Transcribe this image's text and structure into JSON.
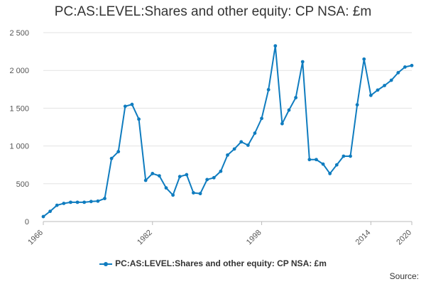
{
  "chart_data": {
    "type": "line",
    "title": "PC:AS:LEVEL:Shares and other equity: CP NSA: £m",
    "xlabel": "",
    "ylabel": "",
    "x_ticks": [
      "1966",
      "1982",
      "1998",
      "2014",
      "2020"
    ],
    "y_ticks": [
      "0",
      "500",
      "1 000",
      "1 500",
      "2 000",
      "2 500"
    ],
    "xlim": [
      1966,
      2020
    ],
    "ylim": [
      0,
      2500
    ],
    "grid": true,
    "legend_position": "bottom",
    "series": [
      {
        "name": "PC:AS:LEVEL:Shares and other equity: CP NSA: £m",
        "color": "#0f7cbf",
        "x": [
          1966,
          1967,
          1968,
          1969,
          1970,
          1971,
          1972,
          1973,
          1974,
          1975,
          1976,
          1977,
          1978,
          1979,
          1980,
          1981,
          1982,
          1983,
          1984,
          1985,
          1986,
          1987,
          1988,
          1989,
          1990,
          1991,
          1992,
          1993,
          1994,
          1995,
          1996,
          1997,
          1998,
          1999,
          2000,
          2001,
          2002,
          2003,
          2004,
          2005,
          2006,
          2007,
          2008,
          2009,
          2010,
          2011,
          2012,
          2013,
          2014,
          2015,
          2016,
          2017,
          2018,
          2019,
          2020
        ],
        "values": [
          65,
          135,
          215,
          240,
          255,
          255,
          255,
          265,
          270,
          305,
          835,
          925,
          1525,
          1550,
          1355,
          545,
          635,
          605,
          445,
          350,
          595,
          620,
          380,
          370,
          555,
          580,
          665,
          880,
          960,
          1055,
          1010,
          1170,
          1365,
          1745,
          2325,
          1295,
          1475,
          1640,
          2115,
          820,
          820,
          760,
          635,
          750,
          865,
          865,
          1545,
          2150,
          1670,
          1740,
          1800,
          1870,
          1970,
          2045,
          2065
        ]
      }
    ],
    "legend": [
      "PC:AS:LEVEL:Shares and other equity: CP NSA: £m"
    ],
    "source_label": "Source:"
  }
}
